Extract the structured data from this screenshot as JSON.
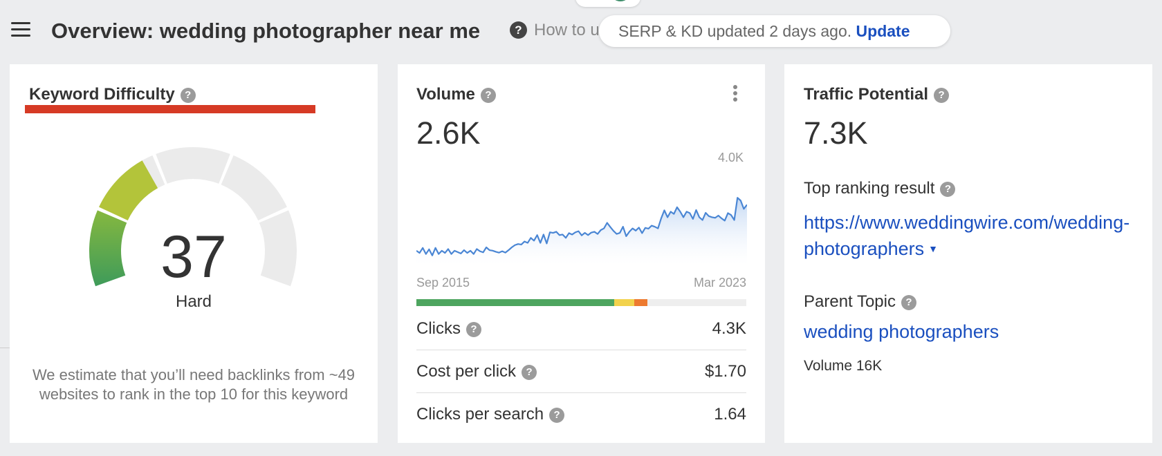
{
  "header": {
    "title": "Overview: wedding photographer near me",
    "help_link": "How to u",
    "toast_text": "SERP & KD updated 2 days ago.",
    "toast_action": "Update"
  },
  "keyword_difficulty": {
    "label": "Keyword Difficulty",
    "score": "37",
    "rating": "Hard",
    "score_fraction": 0.37,
    "note": "We estimate that you’ll need backlinks from ~49 websites to rank in the top 10 for this keyword",
    "colors": {
      "gauge_low": "#3e9b5a",
      "gauge_mid": "#86b83f",
      "gauge_high": "#b3c43a",
      "gauge_empty": "#ebebeb",
      "underline": "#d63a25"
    }
  },
  "volume": {
    "label": "Volume",
    "value": "2.6K",
    "chart_max_label": "4.0K",
    "x_start_label": "Sep 2015",
    "x_end_label": "Mar 2023",
    "clicks_split": [
      {
        "name": "organic",
        "fraction": 0.6,
        "color": "#4da55f"
      },
      {
        "name": "paid-yellow",
        "fraction": 0.06,
        "color": "#f2d24c"
      },
      {
        "name": "paid-orange",
        "fraction": 0.04,
        "color": "#ed7a2f"
      }
    ],
    "rows": [
      {
        "label": "Clicks",
        "value": "4.3K"
      },
      {
        "label": "Cost per click",
        "value": "$1.70"
      },
      {
        "label": "Clicks per search",
        "value": "1.64"
      }
    ]
  },
  "traffic_potential": {
    "label": "Traffic Potential",
    "value": "7.3K",
    "top_result_label": "Top ranking result",
    "top_result_url": "https://www.weddingwire.com/wedding-photographers",
    "parent_topic_label": "Parent Topic",
    "parent_topic": "wedding photographers",
    "parent_topic_volume": "Volume 16K"
  },
  "chart_data": {
    "type": "line",
    "ylim": [
      0,
      4000
    ],
    "reference_line": 2600,
    "x_start": "Sep 2015",
    "x_end": "Mar 2023",
    "values": [
      500,
      420,
      600,
      380,
      550,
      330,
      600,
      380,
      500,
      420,
      560,
      380,
      500,
      450,
      400,
      520,
      420,
      500,
      380,
      560,
      480,
      440,
      620,
      520,
      500,
      460,
      430,
      480,
      430,
      520,
      620,
      700,
      740,
      720,
      830,
      780,
      960,
      860,
      1060,
      780,
      1080,
      760,
      1160,
      1140,
      1180,
      1060,
      1080,
      960,
      1130,
      1080,
      1160,
      1200,
      1050,
      1140,
      1060,
      1150,
      1180,
      1100,
      1240,
      1300,
      1500,
      1350,
      1210,
      1100,
      1140,
      1360,
      1020,
      1180,
      1300,
      1220,
      1330,
      1130,
      1320,
      1290,
      1400,
      1360,
      1300,
      1660,
      1950,
      1700,
      1900,
      1820,
      2060,
      1900,
      1700,
      1900,
      1850,
      1640,
      1960,
      1700,
      1600,
      1860,
      1740,
      1700,
      1680,
      1760,
      1660,
      1580,
      1850,
      1780,
      1600,
      2400,
      2300,
      2000,
      2150
    ]
  }
}
